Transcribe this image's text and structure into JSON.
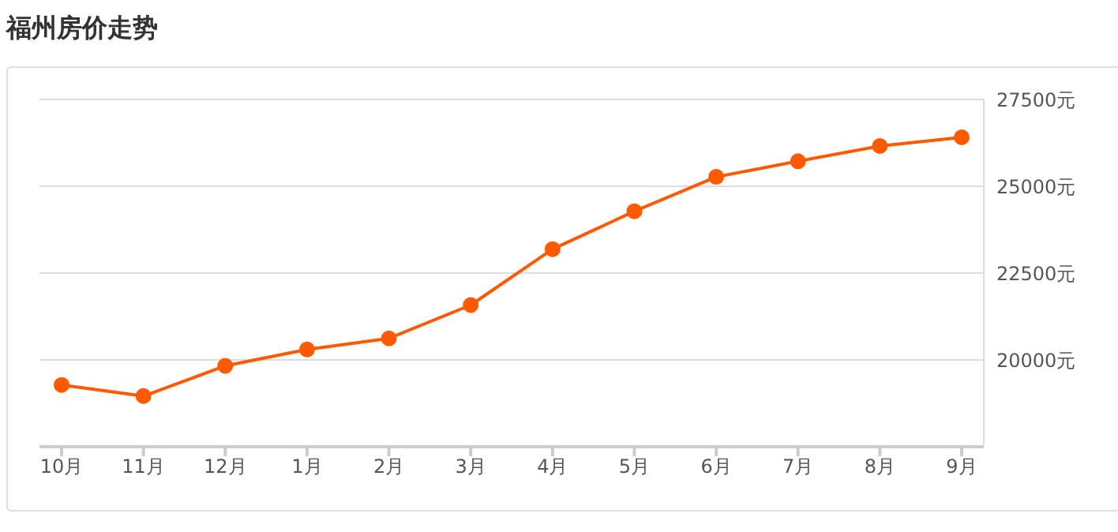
{
  "chart_data": {
    "type": "line",
    "title": "福州房价走势",
    "categories": [
      "10月",
      "11月",
      "12月",
      "1月",
      "2月",
      "3月",
      "4月",
      "5月",
      "6月",
      "7月",
      "8月",
      "9月"
    ],
    "series": [
      {
        "color": "#ff5a00",
        "values": [
          19280,
          18960,
          19830,
          20300,
          20620,
          21580,
          23190,
          24280,
          25270,
          25720,
          26160,
          26410
        ]
      }
    ],
    "ylim": [
      17500,
      27500
    ],
    "yticks": [
      {
        "value": 20000,
        "label": "20000元"
      },
      {
        "value": 22500,
        "label": "22500元"
      },
      {
        "value": 25000,
        "label": "25000元"
      },
      {
        "value": 27500,
        "label": "27500元"
      }
    ],
    "grid": "y",
    "marker": "circle",
    "legend": false
  }
}
